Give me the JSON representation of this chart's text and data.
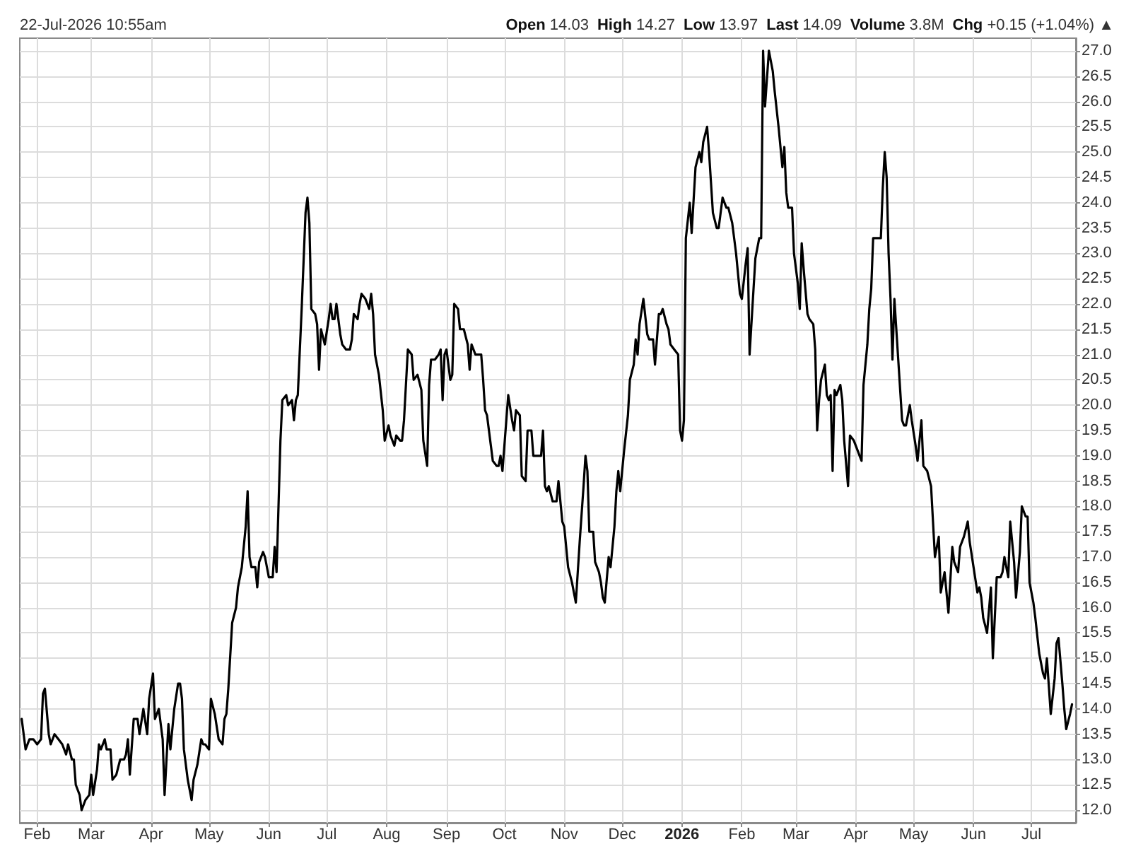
{
  "chart_data": {
    "type": "line",
    "annotations": [
      "22-Jul-2026 10:55am",
      "Open 14.03",
      "High 14.27",
      "Low 13.97",
      "Last 14.09",
      "Volume 3.8M",
      "Chg +0.15 (+1.04%) ▲"
    ],
    "x": [
      "2025-01-24",
      "2025-01-26",
      "2025-01-28",
      "2025-01-30",
      "2025-02-01",
      "2025-02-03",
      "2025-02-04",
      "2025-02-05",
      "2025-02-07",
      "2025-02-08",
      "2025-02-10",
      "2025-02-12",
      "2025-02-14",
      "2025-02-16",
      "2025-02-17",
      "2025-02-19",
      "2025-02-20",
      "2025-02-21",
      "2025-02-23",
      "2025-02-24",
      "2025-02-26",
      "2025-02-28",
      "2025-03-01",
      "2025-03-02",
      "2025-03-04",
      "2025-03-05",
      "2025-03-06",
      "2025-03-08",
      "2025-03-09",
      "2025-03-11",
      "2025-03-12",
      "2025-03-14",
      "2025-03-16",
      "2025-03-18",
      "2025-03-19",
      "2025-03-20",
      "2025-03-21",
      "2025-03-23",
      "2025-03-25",
      "2025-03-26",
      "2025-03-28",
      "2025-03-30",
      "2025-03-31",
      "2025-04-02",
      "2025-04-03",
      "2025-04-05",
      "2025-04-07",
      "2025-04-08",
      "2025-04-10",
      "2025-04-11",
      "2025-04-13",
      "2025-04-15",
      "2025-04-16",
      "2025-04-17",
      "2025-04-18",
      "2025-04-20",
      "2025-04-22",
      "2025-04-23",
      "2025-04-25",
      "2025-04-27",
      "2025-04-28",
      "2025-04-29",
      "2025-05-01",
      "2025-05-02",
      "2025-05-04",
      "2025-05-06",
      "2025-05-08",
      "2025-05-09",
      "2025-05-10",
      "2025-05-11",
      "2025-05-13",
      "2025-05-15",
      "2025-05-16",
      "2025-05-18",
      "2025-05-20",
      "2025-05-21",
      "2025-05-22",
      "2025-05-23",
      "2025-05-25",
      "2025-05-26",
      "2025-05-27",
      "2025-05-29",
      "2025-05-30",
      "2025-06-01",
      "2025-06-03",
      "2025-06-04",
      "2025-06-05",
      "2025-06-07",
      "2025-06-08",
      "2025-06-10",
      "2025-06-11",
      "2025-06-13",
      "2025-06-14",
      "2025-06-15",
      "2025-06-16",
      "2025-06-18",
      "2025-06-20",
      "2025-06-21",
      "2025-06-22",
      "2025-06-23",
      "2025-06-25",
      "2025-06-26",
      "2025-06-27",
      "2025-06-28",
      "2025-06-30",
      "2025-07-02",
      "2025-07-03",
      "2025-07-04",
      "2025-07-05",
      "2025-07-06",
      "2025-07-08",
      "2025-07-09",
      "2025-07-11",
      "2025-07-13",
      "2025-07-14",
      "2025-07-15",
      "2025-07-17",
      "2025-07-18",
      "2025-07-19",
      "2025-07-21",
      "2025-07-23",
      "2025-07-24",
      "2025-07-25",
      "2025-07-26",
      "2025-07-28",
      "2025-07-30",
      "2025-07-31",
      "2025-08-02",
      "2025-08-03",
      "2025-08-05",
      "2025-08-06",
      "2025-08-08",
      "2025-08-09",
      "2025-08-10",
      "2025-08-12",
      "2025-08-14",
      "2025-08-15",
      "2025-08-17",
      "2025-08-19",
      "2025-08-20",
      "2025-08-22",
      "2025-08-23",
      "2025-08-24",
      "2025-08-26",
      "2025-08-28",
      "2025-08-29",
      "2025-08-30",
      "2025-08-31",
      "2025-09-01",
      "2025-09-03",
      "2025-09-04",
      "2025-09-05",
      "2025-09-07",
      "2025-09-08",
      "2025-09-10",
      "2025-09-12",
      "2025-09-13",
      "2025-09-14",
      "2025-09-16",
      "2025-09-17",
      "2025-09-19",
      "2025-09-20",
      "2025-09-21",
      "2025-09-22",
      "2025-09-24",
      "2025-09-25",
      "2025-09-27",
      "2025-09-28",
      "2025-09-29",
      "2025-09-30",
      "2025-10-02",
      "2025-10-03",
      "2025-10-05",
      "2025-10-06",
      "2025-10-07",
      "2025-10-09",
      "2025-10-10",
      "2025-10-12",
      "2025-10-13",
      "2025-10-15",
      "2025-10-16",
      "2025-10-18",
      "2025-10-20",
      "2025-10-21",
      "2025-10-22",
      "2025-10-23",
      "2025-10-24",
      "2025-10-26",
      "2025-10-28",
      "2025-10-29",
      "2025-10-31",
      "2025-11-01",
      "2025-11-03",
      "2025-11-05",
      "2025-11-06",
      "2025-11-07",
      "2025-11-09",
      "2025-11-11",
      "2025-11-12",
      "2025-11-13",
      "2025-11-14",
      "2025-11-16",
      "2025-11-17",
      "2025-11-19",
      "2025-11-20",
      "2025-11-21",
      "2025-11-22",
      "2025-11-24",
      "2025-11-25",
      "2025-11-27",
      "2025-11-28",
      "2025-11-29",
      "2025-11-30",
      "2025-12-02",
      "2025-12-04",
      "2025-12-05",
      "2025-12-07",
      "2025-12-08",
      "2025-12-09",
      "2025-12-10",
      "2025-12-12",
      "2025-12-14",
      "2025-12-15",
      "2025-12-17",
      "2025-12-18",
      "2025-12-20",
      "2025-12-21",
      "2025-12-22",
      "2025-12-24",
      "2025-12-25",
      "2025-12-26",
      "2025-12-28",
      "2025-12-30",
      "2025-12-31",
      "2026-01-01",
      "2026-01-02",
      "2026-01-03",
      "2026-01-05",
      "2026-01-06",
      "2026-01-08",
      "2026-01-10",
      "2026-01-11",
      "2026-01-12",
      "2026-01-14",
      "2026-01-15",
      "2026-01-17",
      "2026-01-19",
      "2026-01-20",
      "2026-01-22",
      "2026-01-24",
      "2026-01-25",
      "2026-01-27",
      "2026-01-29",
      "2026-01-31",
      "2026-02-01",
      "2026-02-03",
      "2026-02-04",
      "2026-02-05",
      "2026-02-08",
      "2026-02-10",
      "2026-02-11",
      "2026-02-12",
      "2026-02-13",
      "2026-02-15",
      "2026-02-16",
      "2026-02-17",
      "2026-02-18",
      "2026-02-20",
      "2026-02-22",
      "2026-02-23",
      "2026-02-24",
      "2026-02-25",
      "2026-02-27",
      "2026-02-28",
      "2026-03-02",
      "2026-03-03",
      "2026-03-04",
      "2026-03-05",
      "2026-03-07",
      "2026-03-08",
      "2026-03-10",
      "2026-03-11",
      "2026-03-12",
      "2026-03-13",
      "2026-03-14",
      "2026-03-16",
      "2026-03-17",
      "2026-03-18",
      "2026-03-19",
      "2026-03-20",
      "2026-03-21",
      "2026-03-22",
      "2026-03-24",
      "2026-03-25",
      "2026-03-26",
      "2026-03-28",
      "2026-03-29",
      "2026-03-31",
      "2026-04-02",
      "2026-04-03",
      "2026-04-04",
      "2026-04-05",
      "2026-04-07",
      "2026-04-08",
      "2026-04-09",
      "2026-04-10",
      "2026-04-12",
      "2026-04-14",
      "2026-04-15",
      "2026-04-16",
      "2026-04-17",
      "2026-04-18",
      "2026-04-19",
      "2026-04-20",
      "2026-04-21",
      "2026-04-23",
      "2026-04-24",
      "2026-04-25",
      "2026-04-26",
      "2026-04-27",
      "2026-04-29",
      "2026-04-30",
      "2026-05-02",
      "2026-05-03",
      "2026-05-05",
      "2026-05-06",
      "2026-05-08",
      "2026-05-10",
      "2026-05-11",
      "2026-05-12",
      "2026-05-14",
      "2026-05-15",
      "2026-05-17",
      "2026-05-19",
      "2026-05-21",
      "2026-05-22",
      "2026-05-24",
      "2026-05-25",
      "2026-05-27",
      "2026-05-29",
      "2026-05-30",
      "2026-06-01",
      "2026-06-03",
      "2026-06-04",
      "2026-06-05",
      "2026-06-06",
      "2026-06-08",
      "2026-06-10",
      "2026-06-11",
      "2026-06-13",
      "2026-06-15",
      "2026-06-16",
      "2026-06-17",
      "2026-06-19",
      "2026-06-20",
      "2026-06-22",
      "2026-06-23",
      "2026-06-25",
      "2026-06-26",
      "2026-06-28",
      "2026-06-29",
      "2026-06-30",
      "2026-07-02",
      "2026-07-03",
      "2026-07-05",
      "2026-07-07",
      "2026-07-08",
      "2026-07-09",
      "2026-07-11",
      "2026-07-13",
      "2026-07-14",
      "2026-07-15",
      "2026-07-17",
      "2026-07-18",
      "2026-07-19",
      "2026-07-21",
      "2026-07-22"
    ],
    "values": [
      13.8,
      13.2,
      13.4,
      13.4,
      13.3,
      13.4,
      14.3,
      14.4,
      13.5,
      13.3,
      13.5,
      13.4,
      13.3,
      13.1,
      13.3,
      13.0,
      13.0,
      12.5,
      12.3,
      12.0,
      12.2,
      12.3,
      12.7,
      12.3,
      12.8,
      13.3,
      13.2,
      13.4,
      13.2,
      13.2,
      12.6,
      12.7,
      13.0,
      13.0,
      13.1,
      13.4,
      12.7,
      13.8,
      13.8,
      13.5,
      14.0,
      13.5,
      14.2,
      14.7,
      13.8,
      14.0,
      13.4,
      12.3,
      13.7,
      13.2,
      14.0,
      14.5,
      14.5,
      14.2,
      13.2,
      12.6,
      12.2,
      12.6,
      12.9,
      13.4,
      13.3,
      13.3,
      13.2,
      14.2,
      13.9,
      13.4,
      13.3,
      13.8,
      13.9,
      14.4,
      15.7,
      16.0,
      16.4,
      16.8,
      17.6,
      18.3,
      17.0,
      16.8,
      16.8,
      16.4,
      16.9,
      17.1,
      17.0,
      16.6,
      16.6,
      17.2,
      16.7,
      19.3,
      20.1,
      20.2,
      20.0,
      20.1,
      19.7,
      20.1,
      20.2,
      21.9,
      23.8,
      24.1,
      23.6,
      21.9,
      21.8,
      21.6,
      20.7,
      21.5,
      21.2,
      21.7,
      22.0,
      21.7,
      21.7,
      22.0,
      21.4,
      21.2,
      21.1,
      21.1,
      21.3,
      21.8,
      21.7,
      22.0,
      22.2,
      22.1,
      21.9,
      22.2,
      21.8,
      21.0,
      20.6,
      19.9,
      19.3,
      19.6,
      19.4,
      19.2,
      19.4,
      19.3,
      19.3,
      19.7,
      21.1,
      21.0,
      20.5,
      20.6,
      20.3,
      19.3,
      18.8,
      20.4,
      20.9,
      20.9,
      21.0,
      21.1,
      20.1,
      21.0,
      21.1,
      20.5,
      20.6,
      22.0,
      21.9,
      21.5,
      21.5,
      21.2,
      20.7,
      21.2,
      21.0,
      21.0,
      21.0,
      20.5,
      19.9,
      19.8,
      19.2,
      18.9,
      18.8,
      18.8,
      19.0,
      18.7,
      19.7,
      20.2,
      19.7,
      19.5,
      19.9,
      19.8,
      18.6,
      18.5,
      19.5,
      19.5,
      19.0,
      19.0,
      19.0,
      19.5,
      18.4,
      18.3,
      18.4,
      18.1,
      18.1,
      18.5,
      17.7,
      17.6,
      16.8,
      16.5,
      16.3,
      16.1,
      17.3,
      18.4,
      19.0,
      18.7,
      17.5,
      17.5,
      16.9,
      16.7,
      16.5,
      16.2,
      16.1,
      17.0,
      16.8,
      17.6,
      18.3,
      18.7,
      18.3,
      19.1,
      19.8,
      20.5,
      20.8,
      21.3,
      21.0,
      21.6,
      22.1,
      21.4,
      21.3,
      21.3,
      20.8,
      21.8,
      21.8,
      21.9,
      21.6,
      21.5,
      21.2,
      21.1,
      21.0,
      19.5,
      19.3,
      19.7,
      23.3,
      24.0,
      23.4,
      24.7,
      25.0,
      24.8,
      25.2,
      25.5,
      25.0,
      23.8,
      23.5,
      23.5,
      24.1,
      23.9,
      23.9,
      23.6,
      23.0,
      22.2,
      22.1,
      22.8,
      23.1,
      21.0,
      22.9,
      23.3,
      23.3,
      27.0,
      25.9,
      27.0,
      26.8,
      26.6,
      26.2,
      25.5,
      24.7,
      25.1,
      24.2,
      23.9,
      23.9,
      23.0,
      22.4,
      21.9,
      23.2,
      22.7,
      21.8,
      21.7,
      21.6,
      21.1,
      19.5,
      20.1,
      20.5,
      20.8,
      20.2,
      20.1,
      20.2,
      18.7,
      20.3,
      20.2,
      20.4,
      20.1,
      19.3,
      18.4,
      19.4,
      19.3,
      19.1,
      19.0,
      18.9,
      20.4,
      21.2,
      21.9,
      22.3,
      23.3,
      23.3,
      23.3,
      24.3,
      25.0,
      24.5,
      23.0,
      22.1,
      20.9,
      22.1,
      20.9,
      20.3,
      19.7,
      19.6,
      19.6,
      20.0,
      19.7,
      19.2,
      18.9,
      19.7,
      18.8,
      18.7,
      18.4,
      17.7,
      17.0,
      17.4,
      16.3,
      16.7,
      15.9,
      17.2,
      16.9,
      16.7,
      17.2,
      17.4,
      17.7,
      17.3,
      16.8,
      16.3,
      16.4,
      16.2,
      15.8,
      15.5,
      16.4,
      15.0,
      16.6,
      16.6,
      16.7,
      17.0,
      16.6,
      17.7,
      16.9,
      16.2,
      17.1,
      18.0,
      17.8,
      17.8,
      16.5,
      16.1,
      15.8,
      15.1,
      14.7,
      14.6,
      15.0,
      13.9,
      14.6,
      15.3,
      15.4,
      14.5,
      14.0,
      13.6,
      13.9,
      14.09
    ],
    "color": "#000000",
    "marker": "none",
    "line_style": "solid",
    "xlim": [
      "2025-01-23",
      "2026-07-24"
    ],
    "xticks": [
      {
        "value": "2025-02-01",
        "label": "Feb"
      },
      {
        "value": "2025-03-01",
        "label": "Mar"
      },
      {
        "value": "2025-04-01",
        "label": "Apr"
      },
      {
        "value": "2025-05-01",
        "label": "May"
      },
      {
        "value": "2025-06-01",
        "label": "Jun"
      },
      {
        "value": "2025-07-01",
        "label": "Jul"
      },
      {
        "value": "2025-08-01",
        "label": "Aug"
      },
      {
        "value": "2025-09-01",
        "label": "Sep"
      },
      {
        "value": "2025-10-01",
        "label": "Oct"
      },
      {
        "value": "2025-11-01",
        "label": "Nov"
      },
      {
        "value": "2025-12-01",
        "label": "Dec"
      },
      {
        "value": "2026-01-01",
        "label": "2026"
      },
      {
        "value": "2026-02-01",
        "label": "Feb"
      },
      {
        "value": "2026-03-01",
        "label": "Mar"
      },
      {
        "value": "2026-04-01",
        "label": "Apr"
      },
      {
        "value": "2026-05-01",
        "label": "May"
      },
      {
        "value": "2026-06-01",
        "label": "Jun"
      },
      {
        "value": "2026-07-01",
        "label": "Jul"
      }
    ],
    "ylim": [
      11.75,
      27.25
    ],
    "yticks": [
      {
        "value": 12,
        "label": "12.0"
      },
      {
        "value": 12.5,
        "label": "12.5"
      },
      {
        "value": 13,
        "label": "13.0"
      },
      {
        "value": 13.5,
        "label": "13.5"
      },
      {
        "value": 14,
        "label": "14.0"
      },
      {
        "value": 14.5,
        "label": "14.5"
      },
      {
        "value": 15,
        "label": "15.0"
      },
      {
        "value": 15.5,
        "label": "15.5"
      },
      {
        "value": 16,
        "label": "16.0"
      },
      {
        "value": 16.5,
        "label": "16.5"
      },
      {
        "value": 17,
        "label": "17.0"
      },
      {
        "value": 17.5,
        "label": "17.5"
      },
      {
        "value": 18,
        "label": "18.0"
      },
      {
        "value": 18.5,
        "label": "18.5"
      },
      {
        "value": 19,
        "label": "19.0"
      },
      {
        "value": 19.5,
        "label": "19.5"
      },
      {
        "value": 20,
        "label": "20.0"
      },
      {
        "value": 20.5,
        "label": "20.5"
      },
      {
        "value": 21,
        "label": "21.0"
      },
      {
        "value": 21.5,
        "label": "21.5"
      },
      {
        "value": 22,
        "label": "22.0"
      },
      {
        "value": 22.5,
        "label": "22.5"
      },
      {
        "value": 23,
        "label": "23.0"
      },
      {
        "value": 23.5,
        "label": "23.5"
      },
      {
        "value": 24,
        "label": "24.0"
      },
      {
        "value": 24.5,
        "label": "24.5"
      },
      {
        "value": 25,
        "label": "25.0"
      },
      {
        "value": 25.5,
        "label": "25.5"
      },
      {
        "value": 26,
        "label": "26.0"
      },
      {
        "value": 26.5,
        "label": "26.5"
      },
      {
        "value": 27,
        "label": "27.0"
      }
    ],
    "grid": true
  }
}
